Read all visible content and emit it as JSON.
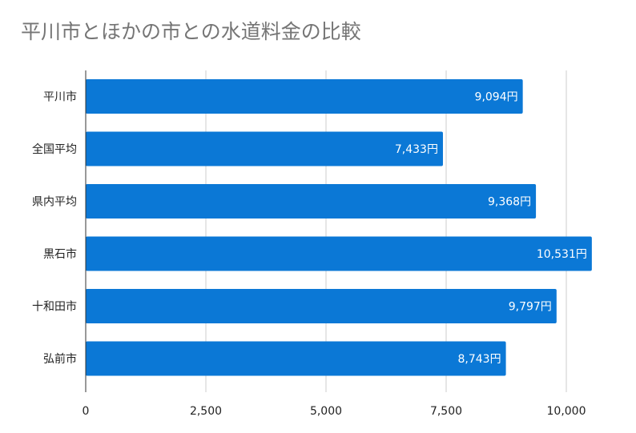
{
  "chart_data": {
    "type": "bar",
    "orientation": "horizontal",
    "title": "平川市とほかの市との水道料金の比較",
    "categories": [
      "平川市",
      "全国平均",
      "県内平均",
      "黒石市",
      "十和田市",
      "弘前市"
    ],
    "values": [
      9094,
      7433,
      9368,
      10531,
      9797,
      8743
    ],
    "data_labels": [
      "9,094円",
      "7,433円",
      "9,368円",
      "10,531円",
      "9,797円",
      "8,743円"
    ],
    "x_ticks": [
      "0",
      "2,500",
      "5,000",
      "7,500",
      "10,000"
    ],
    "x_tick_values": [
      0,
      2500,
      5000,
      7500,
      10000
    ],
    "xlim": [
      0,
      11000
    ],
    "grid": true,
    "legend": "none",
    "bar_color": "#0b78d6",
    "grid_color": "#cccccc",
    "axis_color": "#333333"
  }
}
